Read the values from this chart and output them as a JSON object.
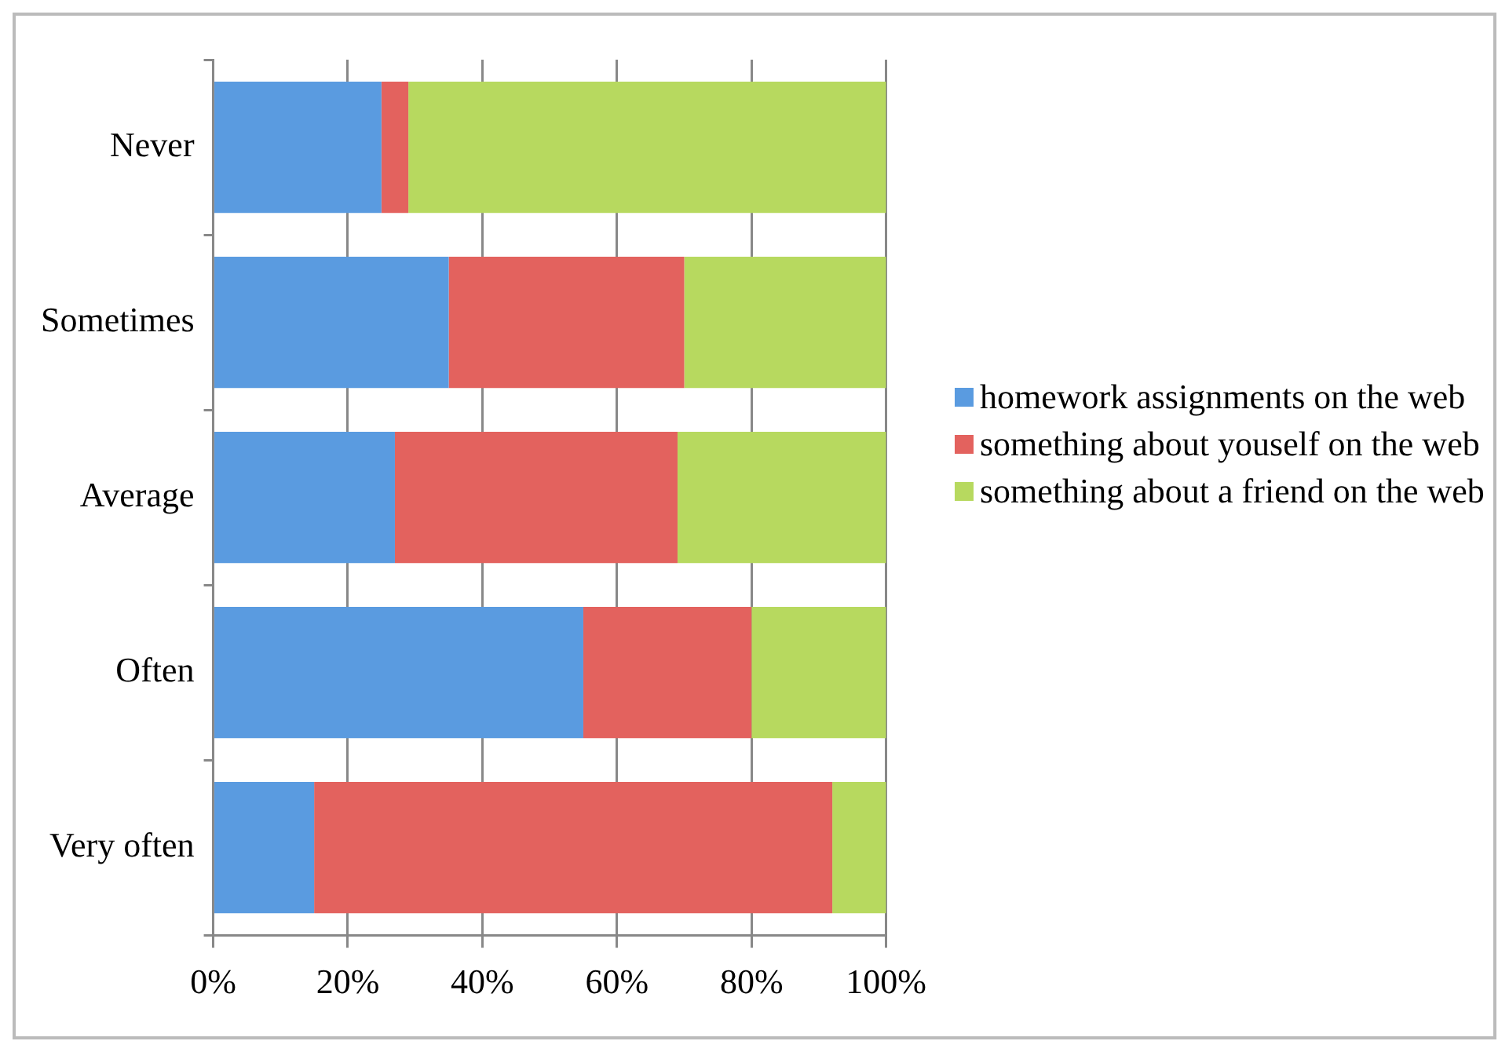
{
  "chart_data": {
    "type": "bar",
    "orientation": "horizontal",
    "stacked": true,
    "categories": [
      "Never",
      "Sometimes",
      "Average",
      "Often",
      "Very often"
    ],
    "series": [
      {
        "name": "homework assignments on the web",
        "color": "#5a9be0",
        "values": [
          25,
          35,
          27,
          55,
          15
        ]
      },
      {
        "name": "something about youself on the web",
        "color": "#e3625e",
        "values": [
          4,
          35,
          42,
          25,
          77
        ]
      },
      {
        "name": "something about a friend on the web",
        "color": "#b7d95f",
        "values": [
          71,
          30,
          31,
          20,
          8
        ]
      }
    ],
    "xlim": [
      0,
      100
    ],
    "xticks": [
      {
        "value": 0,
        "label": "0%"
      },
      {
        "value": 20,
        "label": "20%"
      },
      {
        "value": 40,
        "label": "40%"
      },
      {
        "value": 60,
        "label": "60%"
      },
      {
        "value": 80,
        "label": "80%"
      },
      {
        "value": 100,
        "label": "100%"
      }
    ],
    "grid": "x",
    "legend": "right"
  }
}
